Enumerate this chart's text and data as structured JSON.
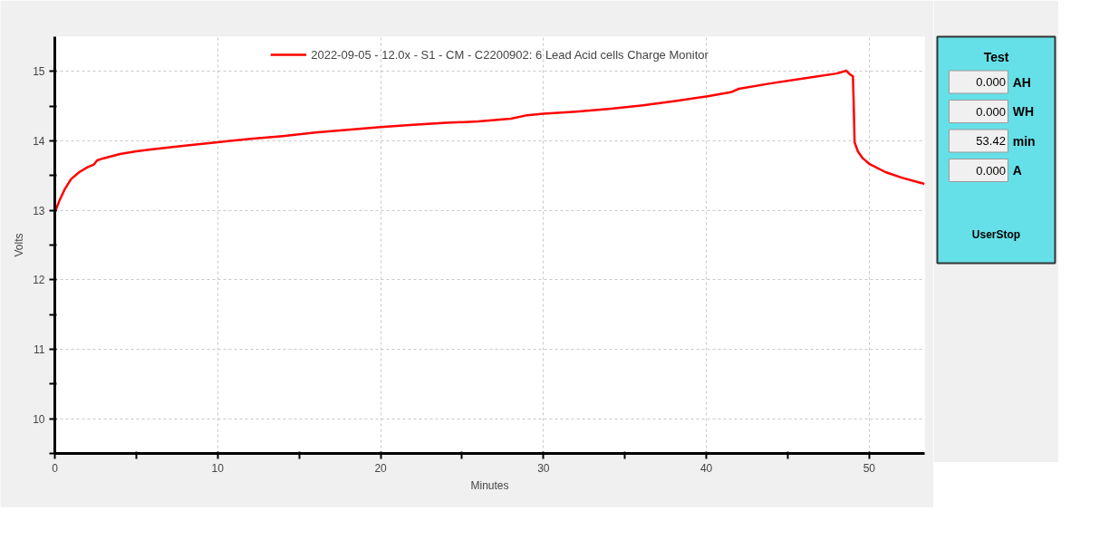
{
  "chart_data": [
    {
      "type": "line",
      "xlabel": "Minutes",
      "ylabel": "Volts",
      "xlim": [
        0,
        53.4
      ],
      "ylim": [
        9.5,
        15.5
      ],
      "xticks": [
        0,
        {
          "value": 5,
          "label": null
        },
        10,
        {
          "value": 15,
          "label": null
        },
        20,
        {
          "value": 25,
          "label": null
        },
        30,
        {
          "value": 35,
          "label": null
        },
        40,
        {
          "value": 45,
          "label": null
        },
        50
      ],
      "yticks": [
        {
          "value": 9.5,
          "label": null
        },
        10,
        {
          "value": 10.5,
          "label": null
        },
        11,
        {
          "value": 11.5,
          "label": null
        },
        12,
        {
          "value": 12.5,
          "label": null
        },
        13,
        {
          "value": 13.5,
          "label": null
        },
        14,
        {
          "value": 14.5,
          "label": null
        },
        15
      ],
      "grid": true,
      "legend": "top",
      "line_style": "solid",
      "series": [
        {
          "name": "2022-09-05 - 12.0x - S1 - CM - C2200902: 6 Lead Acid cells Charge Monitor",
          "color": "#ff0000",
          "x": [
            0,
            0.3,
            0.6,
            1,
            1.5,
            2,
            2.4,
            2.6,
            3,
            4,
            5,
            6,
            8,
            10,
            12,
            14,
            16,
            18,
            20,
            22,
            24,
            26,
            28,
            29,
            30,
            32,
            34,
            36,
            38,
            40,
            41.5,
            42,
            44,
            46,
            48,
            48.6,
            48.8,
            49.0,
            49.05,
            49.1,
            49.3,
            49.6,
            50,
            51,
            52,
            53.4
          ],
          "values": [
            12.97,
            13.15,
            13.3,
            13.45,
            13.55,
            13.62,
            13.66,
            13.72,
            13.75,
            13.81,
            13.85,
            13.88,
            13.93,
            13.98,
            14.03,
            14.07,
            14.12,
            14.16,
            14.2,
            14.23,
            14.26,
            14.28,
            14.32,
            14.37,
            14.39,
            14.42,
            14.46,
            14.51,
            14.57,
            14.64,
            14.7,
            14.75,
            14.83,
            14.9,
            14.97,
            15.01,
            14.96,
            14.93,
            14.5,
            13.98,
            13.85,
            13.75,
            13.67,
            13.55,
            13.47,
            13.38
          ]
        }
      ]
    },
    {
      "type": "other",
      "title": "Test",
      "annotations": [
        "0.000",
        "AH",
        "0.000",
        "WH",
        "53.42",
        "min",
        "0.000",
        "A",
        "UserStop"
      ]
    }
  ]
}
